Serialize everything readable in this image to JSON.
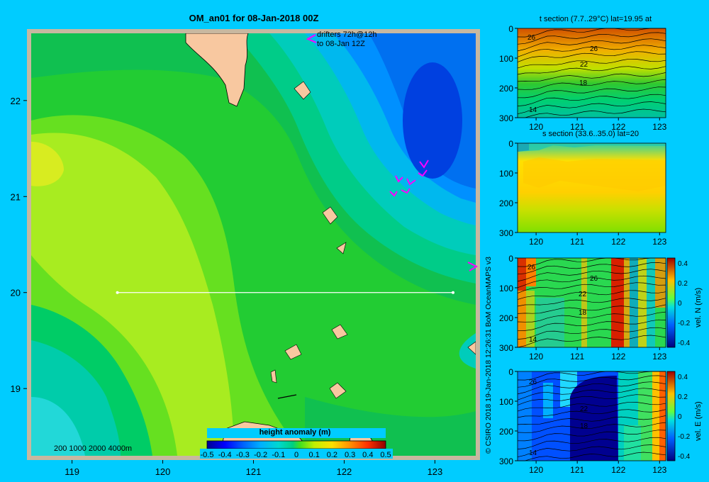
{
  "main_map": {
    "title": "OM_an01 for 08-Jan-2018 00Z",
    "lon_ticks": [
      "119",
      "120",
      "121",
      "122",
      "123"
    ],
    "lat_ticks": [
      "22",
      "21",
      "20",
      "19"
    ],
    "xlim": [
      118.55,
      123.45
    ],
    "ylim": [
      18.3,
      22.7
    ],
    "drifter_note_line1": "drifters 72h@12h",
    "drifter_note_line2": "to 08-Jan 12Z",
    "depth_key": "200 1000 2000 4000m",
    "section_line": {
      "lat": 20,
      "lon_start": 119.5,
      "lon_end": 123.2
    },
    "colorbar_title": "height anomaly (m)",
    "colorbar_ticks": [
      "-0.5",
      "-0.4",
      "-0.3",
      "-0.2",
      "-0.1",
      "0",
      "0.1",
      "0.2",
      "0.3",
      "0.4",
      "0.5"
    ],
    "drifter_color": "#ff00ff",
    "land_color": "#f8c8a0"
  },
  "credit": "© CSIRO 2018   19-Jan-2018 12:26:31 BoM OceanMAPS v3",
  "chart_data": [
    {
      "type": "heatmap",
      "title": "OM_an01 for 08-Jan-2018 00Z",
      "variable": "height anomaly (m)",
      "xlim": [
        118.55,
        123.45
      ],
      "ylim": [
        18.3,
        22.7
      ],
      "clim": [
        -0.5,
        0.5
      ],
      "section": {
        "lat": 20,
        "lon": [
          119.5,
          123.2
        ]
      }
    },
    {
      "type": "heatmap",
      "title": "t section (7.7..29°C) lat=19.95 at",
      "x_ticks": [
        "120",
        "121",
        "122",
        "123"
      ],
      "y_ticks": [
        "0",
        "100",
        "200",
        "300"
      ],
      "contour_labels": [
        "26",
        "26",
        "22",
        "18",
        "14"
      ],
      "colorbar": false
    },
    {
      "type": "heatmap",
      "title": "s section (33.6..35.0) lat=20",
      "x_ticks": [
        "120",
        "121",
        "122",
        "123"
      ],
      "y_ticks": [
        "0",
        "100",
        "200",
        "300"
      ],
      "contour_labels": [],
      "colorbar": false
    },
    {
      "type": "heatmap",
      "title": "",
      "x_ticks": [
        "120",
        "121",
        "122",
        "123"
      ],
      "y_ticks": [
        "0",
        "100",
        "200",
        "300"
      ],
      "contour_labels": [
        "26",
        "26",
        "22",
        "18",
        "14"
      ],
      "colorbar": true,
      "colorbar_label": "vel. N (m/s)",
      "colorbar_ticks": [
        "0.4",
        "0.2",
        "0",
        "-0.2",
        "-0.4"
      ]
    },
    {
      "type": "heatmap",
      "title": "",
      "x_ticks": [
        "120",
        "121",
        "122",
        "123"
      ],
      "y_ticks": [
        "0",
        "100",
        "200",
        "300"
      ],
      "contour_labels": [
        "26",
        "22",
        "18",
        "14"
      ],
      "colorbar": true,
      "colorbar_label": "vel. E (m/s)",
      "colorbar_ticks": [
        "0.4",
        "0.2",
        "0",
        "-0.2",
        "-0.4"
      ]
    }
  ]
}
